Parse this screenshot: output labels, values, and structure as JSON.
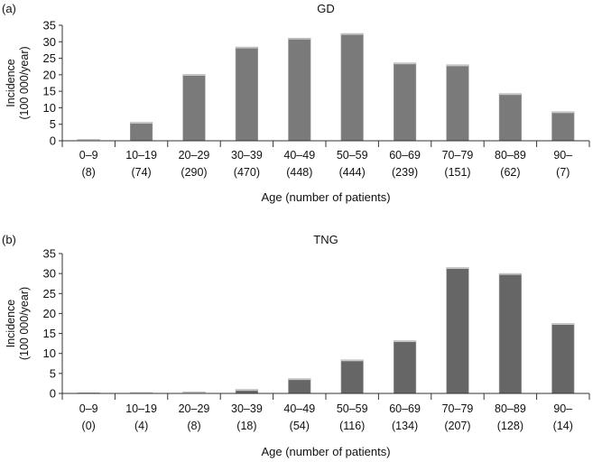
{
  "chart_data": [
    {
      "type": "bar",
      "panel_label": "(a)",
      "title": "GD",
      "xlabel": "Age (number of patients)",
      "ylabel": [
        "Incidence",
        "(100 000/year)"
      ],
      "ylim": [
        0,
        35
      ],
      "yticks": [
        0,
        5,
        10,
        15,
        20,
        25,
        30,
        35
      ],
      "categories": [
        "0–9",
        "10–19",
        "20–29",
        "30–39",
        "40–49",
        "50–59",
        "60–69",
        "70–79",
        "80–89",
        "90–"
      ],
      "patients": [
        "(8)",
        "(74)",
        "(290)",
        "(470)",
        "(448)",
        "(444)",
        "(239)",
        "(151)",
        "(62)",
        "(7)"
      ],
      "values": [
        0.4,
        5.6,
        20.1,
        28.4,
        31.1,
        32.5,
        23.6,
        23.0,
        14.3,
        8.8
      ],
      "bar_color": "#7a7a7a",
      "grid": false
    },
    {
      "type": "bar",
      "panel_label": "(b)",
      "title": "TNG",
      "xlabel": "Age (number of patients)",
      "ylabel": [
        "Incidence",
        "(100 000/year)"
      ],
      "ylim": [
        0,
        35
      ],
      "yticks": [
        0,
        5,
        10,
        15,
        20,
        25,
        30,
        35
      ],
      "categories": [
        "0–9",
        "10–19",
        "20–29",
        "30–39",
        "40–49",
        "50–59",
        "60–69",
        "70–79",
        "80–89",
        "90–"
      ],
      "patients": [
        "(0)",
        "(4)",
        "(8)",
        "(18)",
        "(54)",
        "(116)",
        "(134)",
        "(207)",
        "(128)",
        "(14)"
      ],
      "values": [
        0.0,
        0.2,
        0.4,
        1.0,
        3.7,
        8.4,
        13.2,
        31.5,
        30.0,
        17.5
      ],
      "bar_color": "#666666",
      "grid": false
    }
  ]
}
